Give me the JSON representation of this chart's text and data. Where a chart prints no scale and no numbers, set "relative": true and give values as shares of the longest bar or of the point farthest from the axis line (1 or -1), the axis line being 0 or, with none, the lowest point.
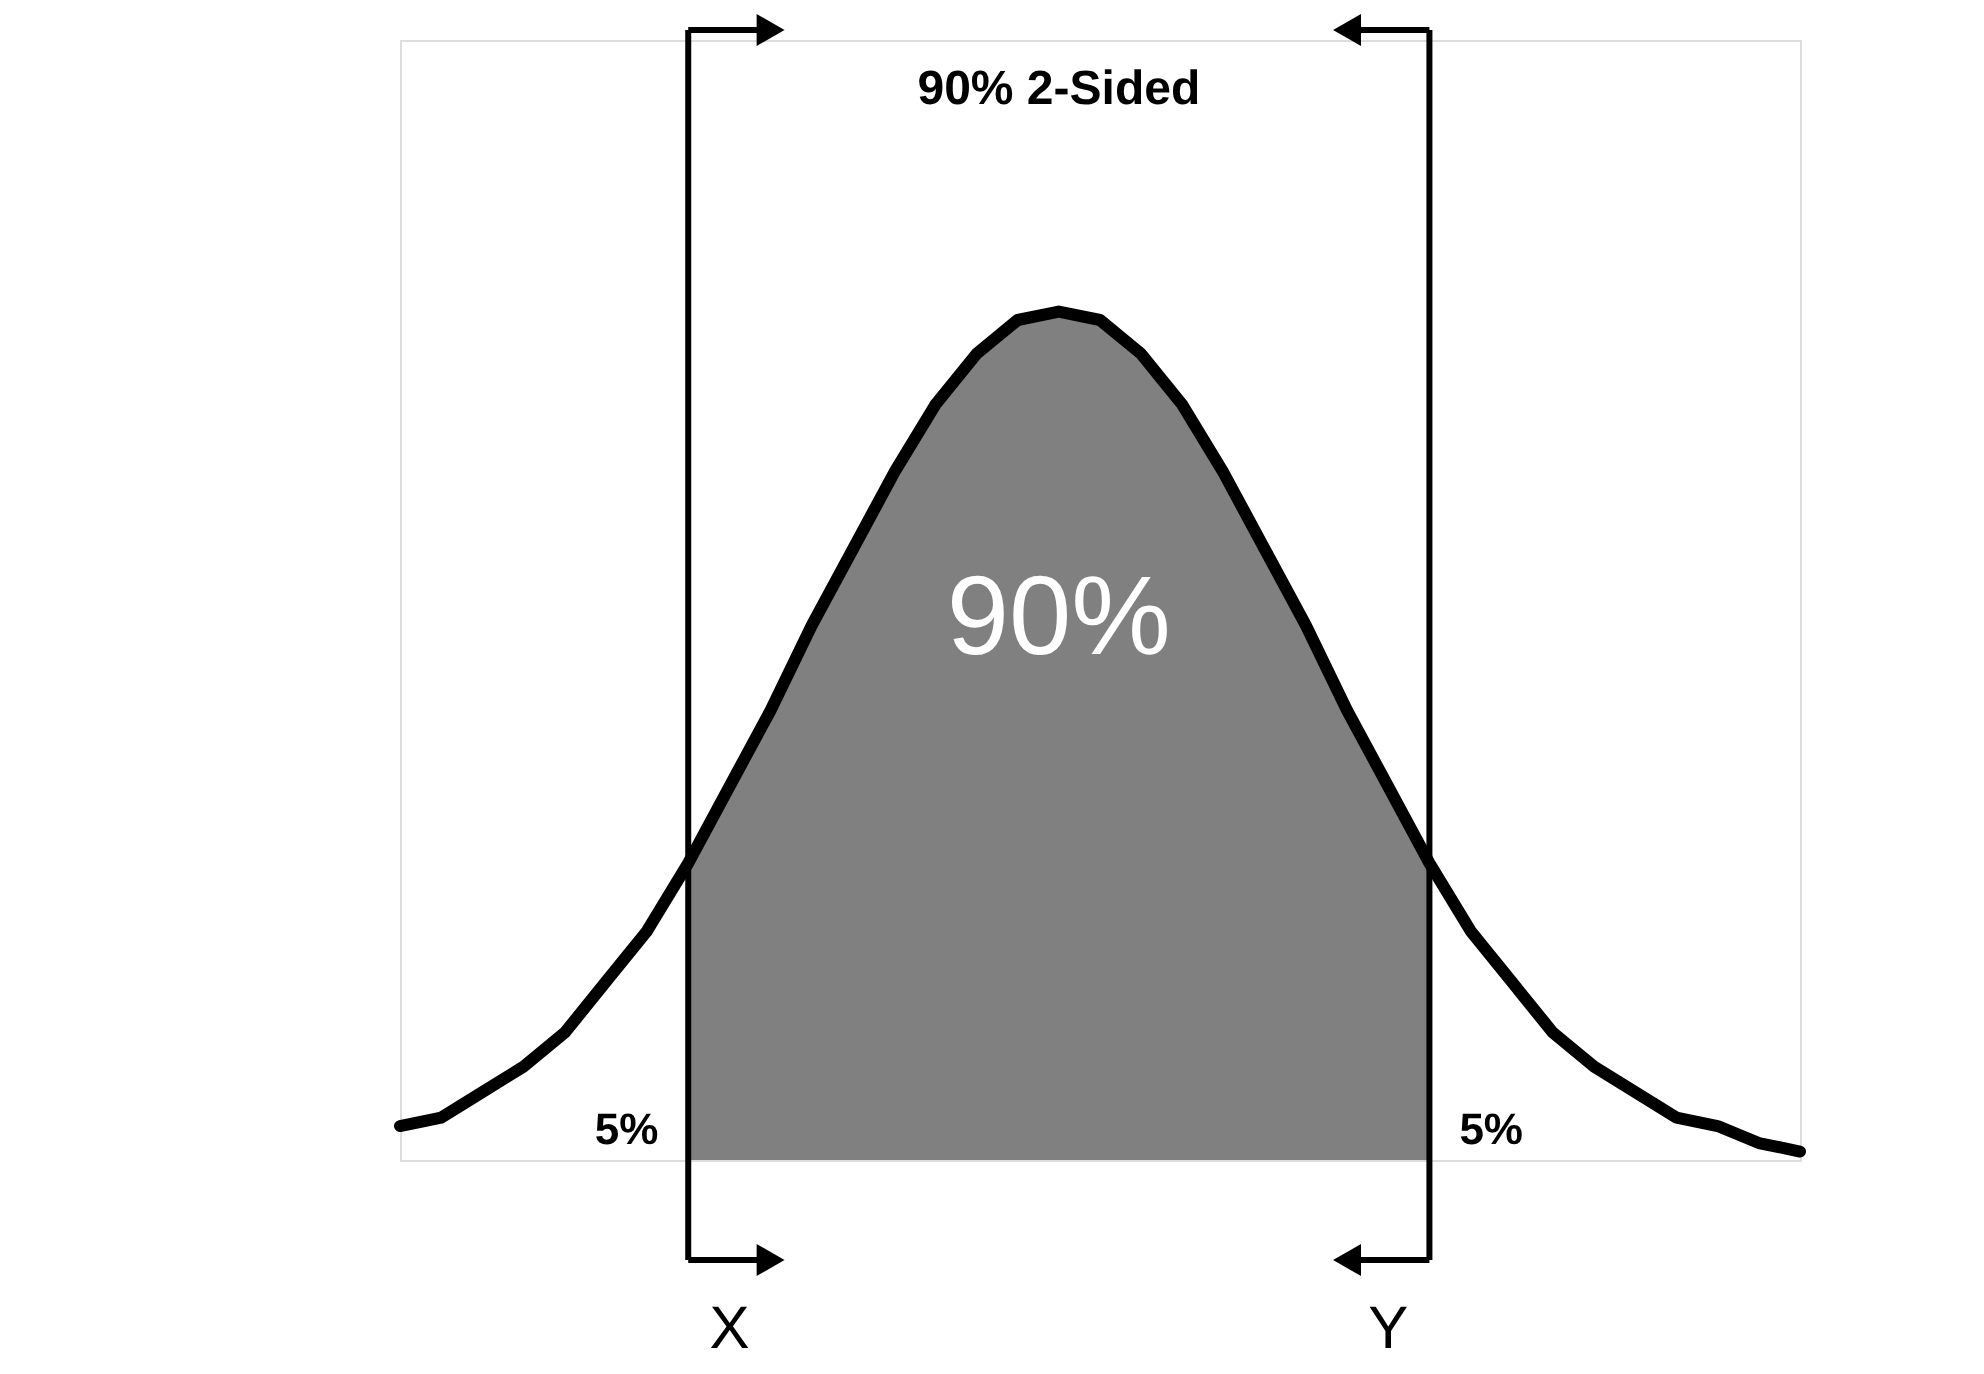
{
  "chart_data": {
    "type": "line",
    "relative": true,
    "categories": [
      null,
      null,
      null,
      null,
      null,
      null,
      null,
      null,
      null,
      null,
      null,
      null,
      null,
      null,
      null,
      null,
      null,
      null,
      null,
      null,
      null,
      null,
      null,
      null,
      null,
      null,
      null,
      null,
      null,
      null,
      null,
      null,
      null,
      null,
      null
    ],
    "series": [
      {
        "type": "area",
        "color": "#808080",
        "values": [
          null,
          null,
          null,
          null,
          null,
          null,
          null,
          0.35,
          0.44,
          0.53,
          0.63,
          0.72,
          0.81,
          0.89,
          0.95,
          0.99,
          1.0,
          0.99,
          0.95,
          0.89,
          0.81,
          0.72,
          0.63,
          0.53,
          0.44,
          0.35,
          null,
          null,
          null,
          null,
          null,
          null,
          null,
          null,
          null
        ]
      },
      {
        "color": "#000000",
        "values": [
          0.04,
          0.05,
          0.08,
          0.11,
          0.15,
          0.21,
          0.27,
          0.35,
          0.44,
          0.53,
          0.63,
          0.72,
          0.81,
          0.89,
          0.95,
          0.99,
          1.0,
          0.99,
          0.95,
          0.89,
          0.81,
          0.72,
          0.63,
          0.53,
          0.44,
          0.35,
          0.27,
          0.21,
          0.15,
          0.11,
          0.08,
          0.05,
          0.04,
          0.02,
          0.01
        ]
      }
    ],
    "annotations": [
      "90% 2-Sided",
      "90%",
      "5%",
      "5%",
      "X",
      "Y"
    ],
    "marker": "none",
    "line_style": "solid"
  }
}
